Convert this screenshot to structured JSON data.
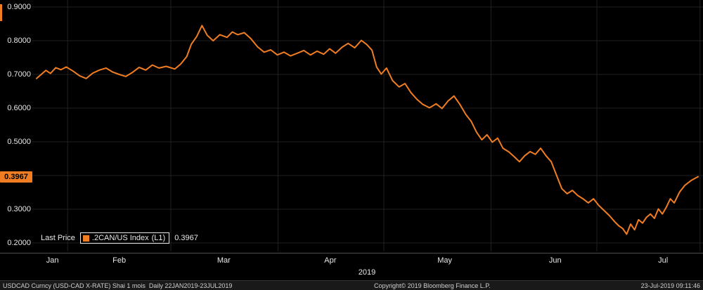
{
  "colors": {
    "background": "#000000",
    "line": "#f07d22",
    "badge_bg": "#f07d22",
    "badge_text": "#000000",
    "grid": "#212121",
    "axis_line": "#4d4d4d",
    "axis_text": "#e8e8e8",
    "footer_bg": "#191919",
    "footer_text": "#cfcfcf"
  },
  "y_axis": {
    "labels": [
      {
        "text": "0.9000",
        "value": 0.9
      },
      {
        "text": "0.8000",
        "value": 0.8
      },
      {
        "text": "0.7000",
        "value": 0.7
      },
      {
        "text": "0.6000",
        "value": 0.6
      },
      {
        "text": "0.5000",
        "value": 0.5
      },
      {
        "text": "0.3000",
        "value": 0.3
      },
      {
        "text": "0.2000",
        "value": 0.2
      }
    ],
    "badge": {
      "text": "0.3967",
      "value": 0.3967
    }
  },
  "x_axis": {
    "months": [
      {
        "label": "Jan",
        "f": 0.024
      },
      {
        "label": "Feb",
        "f": 0.125
      },
      {
        "label": "Mar",
        "f": 0.283
      },
      {
        "label": "Apr",
        "f": 0.444
      },
      {
        "label": "May",
        "f": 0.617
      },
      {
        "label": "Jun",
        "f": 0.784
      },
      {
        "label": "Jul",
        "f": 0.947
      }
    ],
    "boundaries": [
      0.047,
      0.203,
      0.365,
      0.525,
      0.687,
      0.847,
      1.003
    ],
    "year": "2019"
  },
  "legend": {
    "prefix": "Last Price",
    "series_label": ".2CAN/US Index",
    "series_tag": "(L1)",
    "value": "0.3967"
  },
  "footer": {
    "left": "USDCAD Curncy (USD-CAD X-RATE) Shai 1 mois  Daily 22JAN2019-23JUL2019",
    "center": "Copyright© 2019 Bloomberg Finance L.P.",
    "right": "23-Jul-2019 09:11:46"
  },
  "chart_data": {
    "type": "line",
    "title": "USDCAD Curncy (USD-CAD X-RATE)",
    "period": "Daily 22JAN2019-23JUL2019",
    "ylim": [
      0.2,
      0.9
    ],
    "y_ticks": [
      0.9,
      0.8,
      0.7,
      0.6,
      0.5,
      0.4,
      0.3,
      0.2
    ],
    "x_months": [
      "Jan",
      "Feb",
      "Mar",
      "Apr",
      "May",
      "Jun",
      "Jul"
    ],
    "year": "2019",
    "grid": true,
    "legend_position": "bottom-left",
    "series": [
      {
        "name": ".2CAN/US Index",
        "tag": "(L1)",
        "last_price": 0.3967,
        "color": "#f07d22",
        "points": [
          [
            0.0,
            0.688
          ],
          [
            0.007,
            0.7
          ],
          [
            0.014,
            0.712
          ],
          [
            0.021,
            0.703
          ],
          [
            0.029,
            0.72
          ],
          [
            0.037,
            0.714
          ],
          [
            0.045,
            0.722
          ],
          [
            0.055,
            0.71
          ],
          [
            0.065,
            0.696
          ],
          [
            0.075,
            0.688
          ],
          [
            0.085,
            0.704
          ],
          [
            0.095,
            0.713
          ],
          [
            0.105,
            0.719
          ],
          [
            0.115,
            0.707
          ],
          [
            0.125,
            0.7
          ],
          [
            0.135,
            0.694
          ],
          [
            0.145,
            0.706
          ],
          [
            0.155,
            0.721
          ],
          [
            0.165,
            0.713
          ],
          [
            0.175,
            0.728
          ],
          [
            0.185,
            0.719
          ],
          [
            0.196,
            0.724
          ],
          [
            0.209,
            0.716
          ],
          [
            0.218,
            0.731
          ],
          [
            0.227,
            0.753
          ],
          [
            0.234,
            0.79
          ],
          [
            0.242,
            0.812
          ],
          [
            0.25,
            0.845
          ],
          [
            0.258,
            0.816
          ],
          [
            0.267,
            0.8
          ],
          [
            0.277,
            0.818
          ],
          [
            0.288,
            0.81
          ],
          [
            0.296,
            0.826
          ],
          [
            0.304,
            0.818
          ],
          [
            0.314,
            0.824
          ],
          [
            0.324,
            0.806
          ],
          [
            0.334,
            0.782
          ],
          [
            0.344,
            0.766
          ],
          [
            0.354,
            0.773
          ],
          [
            0.364,
            0.758
          ],
          [
            0.374,
            0.766
          ],
          [
            0.384,
            0.755
          ],
          [
            0.394,
            0.763
          ],
          [
            0.404,
            0.771
          ],
          [
            0.414,
            0.758
          ],
          [
            0.424,
            0.769
          ],
          [
            0.434,
            0.76
          ],
          [
            0.443,
            0.776
          ],
          [
            0.452,
            0.763
          ],
          [
            0.462,
            0.781
          ],
          [
            0.471,
            0.792
          ],
          [
            0.481,
            0.779
          ],
          [
            0.491,
            0.801
          ],
          [
            0.499,
            0.789
          ],
          [
            0.507,
            0.772
          ],
          [
            0.514,
            0.722
          ],
          [
            0.521,
            0.701
          ],
          [
            0.529,
            0.719
          ],
          [
            0.538,
            0.682
          ],
          [
            0.548,
            0.663
          ],
          [
            0.557,
            0.673
          ],
          [
            0.566,
            0.646
          ],
          [
            0.575,
            0.626
          ],
          [
            0.584,
            0.611
          ],
          [
            0.594,
            0.601
          ],
          [
            0.604,
            0.613
          ],
          [
            0.613,
            0.599
          ],
          [
            0.622,
            0.621
          ],
          [
            0.631,
            0.636
          ],
          [
            0.64,
            0.611
          ],
          [
            0.649,
            0.581
          ],
          [
            0.657,
            0.561
          ],
          [
            0.665,
            0.529
          ],
          [
            0.673,
            0.506
          ],
          [
            0.681,
            0.521
          ],
          [
            0.689,
            0.499
          ],
          [
            0.697,
            0.511
          ],
          [
            0.705,
            0.481
          ],
          [
            0.714,
            0.47
          ],
          [
            0.722,
            0.456
          ],
          [
            0.73,
            0.441
          ],
          [
            0.738,
            0.459
          ],
          [
            0.746,
            0.471
          ],
          [
            0.754,
            0.463
          ],
          [
            0.762,
            0.481
          ],
          [
            0.77,
            0.459
          ],
          [
            0.778,
            0.441
          ],
          [
            0.786,
            0.401
          ],
          [
            0.794,
            0.361
          ],
          [
            0.802,
            0.346
          ],
          [
            0.81,
            0.356
          ],
          [
            0.818,
            0.341
          ],
          [
            0.826,
            0.331
          ],
          [
            0.834,
            0.319
          ],
          [
            0.842,
            0.331
          ],
          [
            0.85,
            0.311
          ],
          [
            0.858,
            0.296
          ],
          [
            0.866,
            0.281
          ],
          [
            0.874,
            0.263
          ],
          [
            0.88,
            0.251
          ],
          [
            0.886,
            0.243
          ],
          [
            0.892,
            0.226
          ],
          [
            0.898,
            0.256
          ],
          [
            0.904,
            0.239
          ],
          [
            0.91,
            0.269
          ],
          [
            0.916,
            0.259
          ],
          [
            0.922,
            0.276
          ],
          [
            0.928,
            0.286
          ],
          [
            0.934,
            0.273
          ],
          [
            0.94,
            0.301
          ],
          [
            0.946,
            0.286
          ],
          [
            0.952,
            0.306
          ],
          [
            0.958,
            0.331
          ],
          [
            0.964,
            0.319
          ],
          [
            0.972,
            0.351
          ],
          [
            0.98,
            0.371
          ],
          [
            0.99,
            0.386
          ],
          [
            1.0,
            0.3967
          ]
        ]
      }
    ]
  }
}
